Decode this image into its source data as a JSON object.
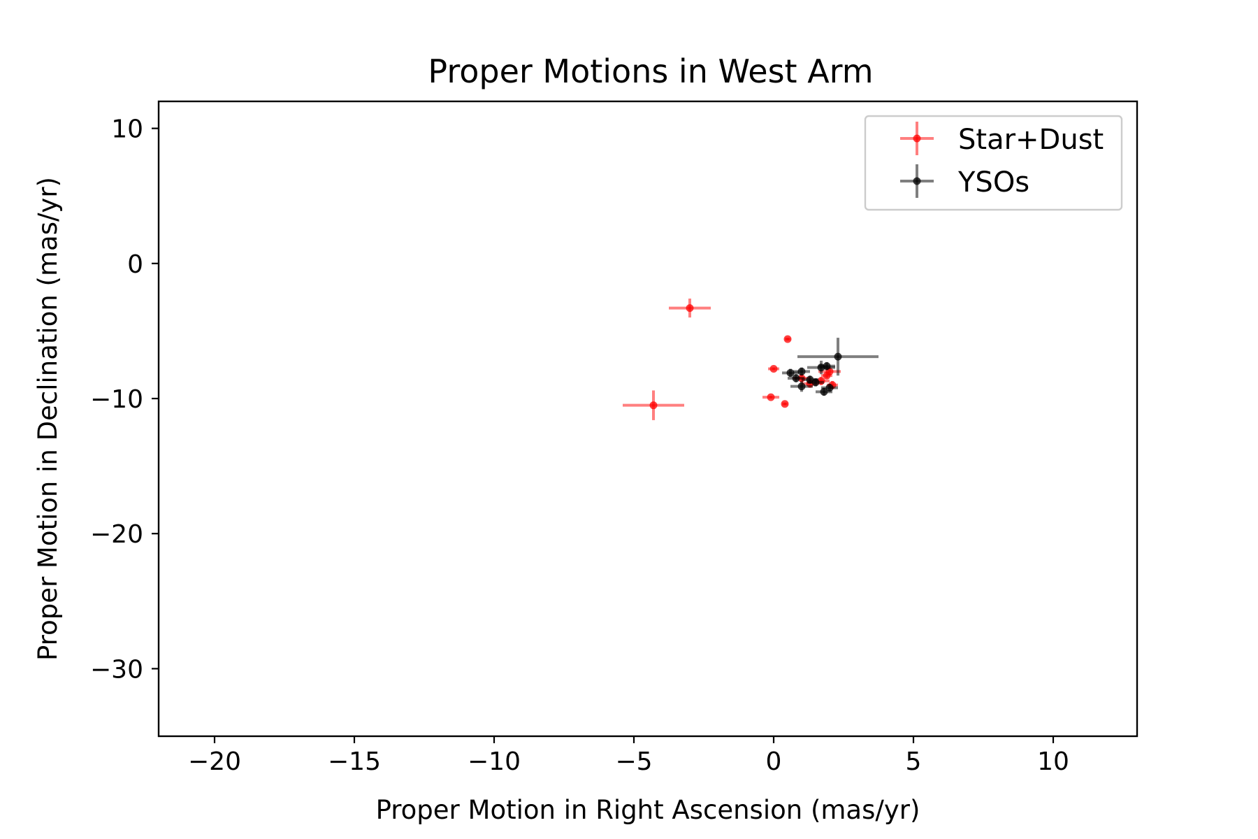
{
  "chart_data": {
    "type": "scatter",
    "title": "Proper Motions in West Arm",
    "xlabel": "Proper Motion in Right Ascension (mas/yr)",
    "ylabel": "Proper Motion in Declination (mas/yr)",
    "xlim": [
      -22,
      13
    ],
    "ylim": [
      -35,
      12
    ],
    "xticks": [
      -20,
      -15,
      -10,
      -5,
      0,
      5,
      10
    ],
    "yticks": [
      10,
      0,
      -10,
      -20,
      -30
    ],
    "xtick_labels": [
      "−20",
      "−15",
      "−10",
      "−5",
      "0",
      "5",
      "10"
    ],
    "ytick_labels": [
      "10",
      "0",
      "−10",
      "−20",
      "−30"
    ],
    "grid": false,
    "legend_position": "top-right",
    "series": [
      {
        "name": "Star+Dust",
        "color": "#ff0000",
        "points": [
          {
            "x": -3.0,
            "y": -3.3,
            "xerr": 0.75,
            "yerr": 0.7
          },
          {
            "x": -4.3,
            "y": -10.5,
            "xerr": 1.1,
            "yerr": 1.1
          },
          {
            "x": 0.5,
            "y": -5.6,
            "xerr": 0.1,
            "yerr": 0.1
          },
          {
            "x": 0.0,
            "y": -7.8,
            "xerr": 0.2,
            "yerr": 0.1
          },
          {
            "x": -0.1,
            "y": -9.9,
            "xerr": 0.3,
            "yerr": 0.1
          },
          {
            "x": 0.4,
            "y": -10.4,
            "xerr": 0.1,
            "yerr": 0.1
          },
          {
            "x": 1.0,
            "y": -8.5,
            "xerr": 0.3,
            "yerr": 0.3
          },
          {
            "x": 1.3,
            "y": -8.9,
            "xerr": 0.3,
            "yerr": 0.3
          },
          {
            "x": 1.7,
            "y": -8.7,
            "xerr": 0.3,
            "yerr": 0.3
          },
          {
            "x": 2.0,
            "y": -8.0,
            "xerr": 0.4,
            "yerr": 0.3
          },
          {
            "x": 2.1,
            "y": -9.0,
            "xerr": 0.2,
            "yerr": 0.3
          },
          {
            "x": 1.9,
            "y": -8.3,
            "xerr": 0.2,
            "yerr": 0.2
          }
        ]
      },
      {
        "name": "YSOs",
        "color": "#000000",
        "points": [
          {
            "x": 2.3,
            "y": -6.9,
            "xerr": 1.45,
            "yerr": 1.4
          },
          {
            "x": 0.6,
            "y": -8.1,
            "xerr": 0.3,
            "yerr": 0.3
          },
          {
            "x": 0.8,
            "y": -8.5,
            "xerr": 0.3,
            "yerr": 0.3
          },
          {
            "x": 1.0,
            "y": -8.0,
            "xerr": 0.3,
            "yerr": 0.3
          },
          {
            "x": 1.0,
            "y": -9.1,
            "xerr": 0.4,
            "yerr": 0.4
          },
          {
            "x": 1.3,
            "y": -8.6,
            "xerr": 0.3,
            "yerr": 0.3
          },
          {
            "x": 1.5,
            "y": -8.8,
            "xerr": 0.3,
            "yerr": 0.3
          },
          {
            "x": 1.7,
            "y": -7.7,
            "xerr": 0.5,
            "yerr": 0.5
          },
          {
            "x": 1.9,
            "y": -7.6,
            "xerr": 0.3,
            "yerr": 0.3
          },
          {
            "x": 1.8,
            "y": -9.5,
            "xerr": 0.3,
            "yerr": 0.3
          },
          {
            "x": 2.0,
            "y": -9.2,
            "xerr": 0.3,
            "yerr": 0.3
          }
        ]
      }
    ]
  }
}
